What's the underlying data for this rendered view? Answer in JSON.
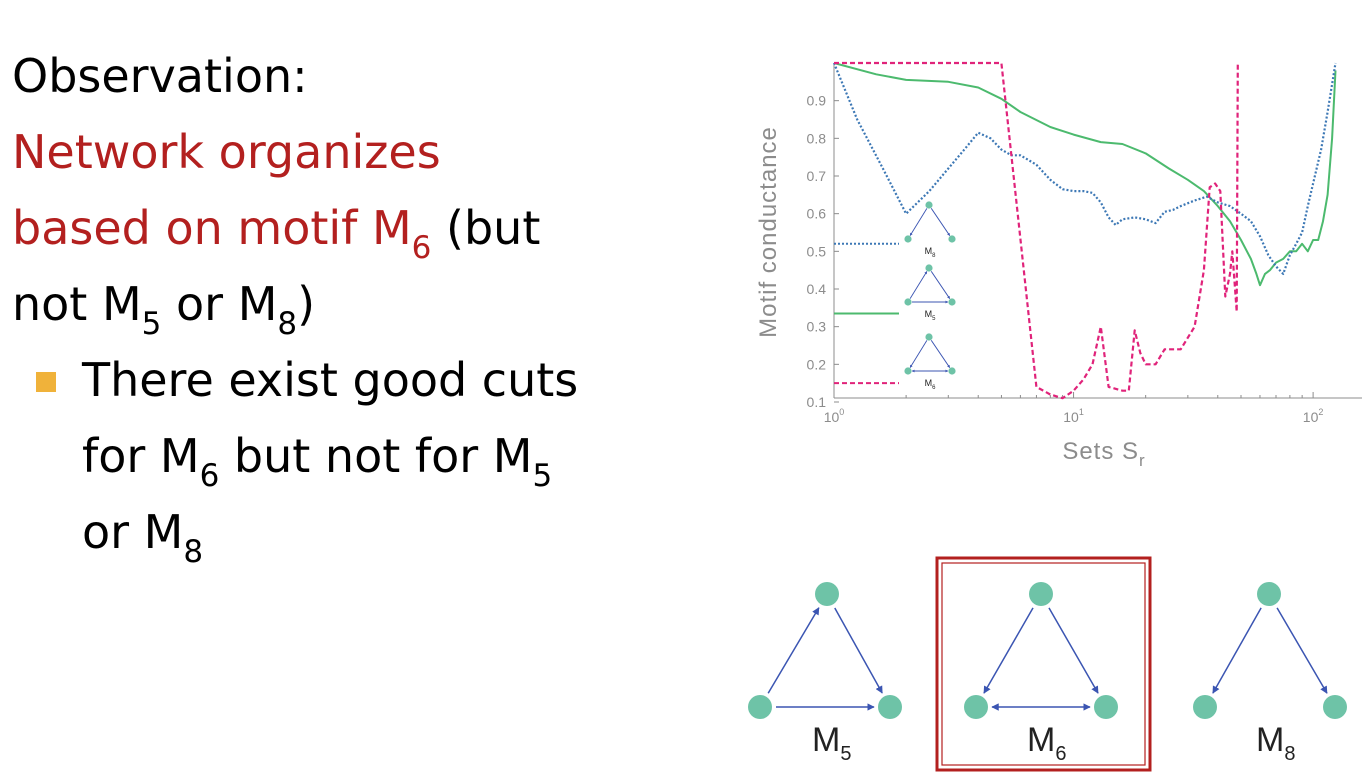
{
  "slide": {
    "heading": "Observation:",
    "red_line1": "Network organizes",
    "red_line2_prefix": "based on motif M",
    "red_line2_sub": "6",
    "line2_suffix": " (but",
    "line3_a": "not M",
    "line3_sub1": "5",
    "line3_b": " or M",
    "line3_sub2": "8",
    "line3_c": ")",
    "bullet_line1": "There exist good cuts",
    "bullet_line2_a": "for M",
    "bullet_line2_sub1": "6",
    "bullet_line2_b": " but not for M",
    "bullet_line2_sub2": "5",
    "bullet_line3_a": "or M",
    "bullet_line3_sub": "8",
    "bullet_color": "#f0b23a",
    "accent_color": "#b3201f"
  },
  "chart_data": {
    "type": "line",
    "xlabel_main": "Sets S",
    "xlabel_sub": "r",
    "ylabel": "Motif conductance",
    "xscale": "log",
    "xlim": [
      1,
      160
    ],
    "ylim": [
      0.1,
      1.0
    ],
    "yticks": [
      "0.1",
      "0.2",
      "0.3",
      "0.4",
      "0.5",
      "0.6",
      "0.7",
      "0.8",
      "0.9"
    ],
    "xticks": [
      {
        "base": "10",
        "exp": "0"
      },
      {
        "base": "10",
        "exp": "1"
      },
      {
        "base": "10",
        "exp": "2"
      }
    ],
    "series": [
      {
        "motif": "M5",
        "color": "#4cba6e",
        "style": "solid",
        "legend_y": 0.335,
        "points": [
          [
            1,
            1.0
          ],
          [
            1.5,
            0.97
          ],
          [
            2,
            0.955
          ],
          [
            3,
            0.95
          ],
          [
            4,
            0.935
          ],
          [
            5,
            0.905
          ],
          [
            6,
            0.87
          ],
          [
            8,
            0.83
          ],
          [
            10,
            0.81
          ],
          [
            13,
            0.79
          ],
          [
            16,
            0.785
          ],
          [
            20,
            0.76
          ],
          [
            25,
            0.72
          ],
          [
            30,
            0.69
          ],
          [
            35,
            0.66
          ],
          [
            40,
            0.62
          ],
          [
            45,
            0.58
          ],
          [
            50,
            0.53
          ],
          [
            55,
            0.48
          ],
          [
            58,
            0.44
          ],
          [
            60,
            0.41
          ],
          [
            63,
            0.44
          ],
          [
            66,
            0.45
          ],
          [
            70,
            0.47
          ],
          [
            75,
            0.48
          ],
          [
            80,
            0.5
          ],
          [
            85,
            0.5
          ],
          [
            90,
            0.52
          ],
          [
            95,
            0.5
          ],
          [
            100,
            0.53
          ],
          [
            105,
            0.53
          ],
          [
            110,
            0.58
          ],
          [
            115,
            0.65
          ],
          [
            120,
            0.8
          ],
          [
            124,
            0.98
          ]
        ]
      },
      {
        "motif": "M8",
        "color": "#3d78b5",
        "style": "dotted",
        "legend_y": 0.52,
        "points": [
          [
            1,
            1.0
          ],
          [
            1.25,
            0.85
          ],
          [
            1.6,
            0.72
          ],
          [
            2,
            0.6
          ],
          [
            2.5,
            0.66
          ],
          [
            3,
            0.72
          ],
          [
            3.5,
            0.77
          ],
          [
            4,
            0.815
          ],
          [
            4.5,
            0.8
          ],
          [
            5,
            0.77
          ],
          [
            5.5,
            0.755
          ],
          [
            6,
            0.755
          ],
          [
            7,
            0.73
          ],
          [
            8,
            0.69
          ],
          [
            9,
            0.665
          ],
          [
            10,
            0.66
          ],
          [
            11,
            0.66
          ],
          [
            12,
            0.655
          ],
          [
            13,
            0.63
          ],
          [
            14,
            0.59
          ],
          [
            15,
            0.57
          ],
          [
            16,
            0.585
          ],
          [
            18,
            0.59
          ],
          [
            20,
            0.585
          ],
          [
            22,
            0.575
          ],
          [
            24,
            0.605
          ],
          [
            26,
            0.61
          ],
          [
            28,
            0.62
          ],
          [
            32,
            0.635
          ],
          [
            36,
            0.645
          ],
          [
            40,
            0.63
          ],
          [
            45,
            0.62
          ],
          [
            50,
            0.6
          ],
          [
            55,
            0.58
          ],
          [
            60,
            0.54
          ],
          [
            65,
            0.49
          ],
          [
            70,
            0.46
          ],
          [
            75,
            0.44
          ],
          [
            80,
            0.49
          ],
          [
            85,
            0.52
          ],
          [
            90,
            0.55
          ],
          [
            95,
            0.62
          ],
          [
            100,
            0.68
          ],
          [
            108,
            0.77
          ],
          [
            115,
            0.87
          ],
          [
            124,
            1.0
          ]
        ]
      },
      {
        "motif": "M6",
        "color": "#e0237a",
        "style": "dashed",
        "legend_y": 0.15,
        "points": [
          [
            1,
            1.0
          ],
          [
            5,
            1.0
          ],
          [
            7,
            0.14
          ],
          [
            8,
            0.12
          ],
          [
            9,
            0.11
          ],
          [
            10,
            0.13
          ],
          [
            11,
            0.16
          ],
          [
            12,
            0.2
          ],
          [
            13,
            0.3
          ],
          [
            14,
            0.14
          ],
          [
            16,
            0.13
          ],
          [
            17,
            0.13
          ],
          [
            18,
            0.29
          ],
          [
            19,
            0.23
          ],
          [
            20,
            0.2
          ],
          [
            22,
            0.2
          ],
          [
            24,
            0.24
          ],
          [
            28,
            0.24
          ],
          [
            32,
            0.3
          ],
          [
            35,
            0.45
          ],
          [
            37,
            0.67
          ],
          [
            39,
            0.68
          ],
          [
            41,
            0.66
          ],
          [
            43,
            0.38
          ],
          [
            45,
            0.44
          ],
          [
            46,
            0.5
          ],
          [
            48,
            0.34
          ],
          [
            48.5,
            1.0
          ]
        ]
      }
    ]
  },
  "motif_icons": {
    "mini_labels": [
      {
        "main": "M",
        "sub": "8"
      },
      {
        "main": "M",
        "sub": "5"
      },
      {
        "main": "M",
        "sub": "6"
      }
    ],
    "large_labels": [
      {
        "main": "M",
        "sub": "5"
      },
      {
        "main": "M",
        "sub": "6"
      },
      {
        "main": "M",
        "sub": "8"
      }
    ],
    "node_color": "#6ec3a7",
    "edge_color": "#3b55b2",
    "highlight_border_color": "#b3201f"
  }
}
